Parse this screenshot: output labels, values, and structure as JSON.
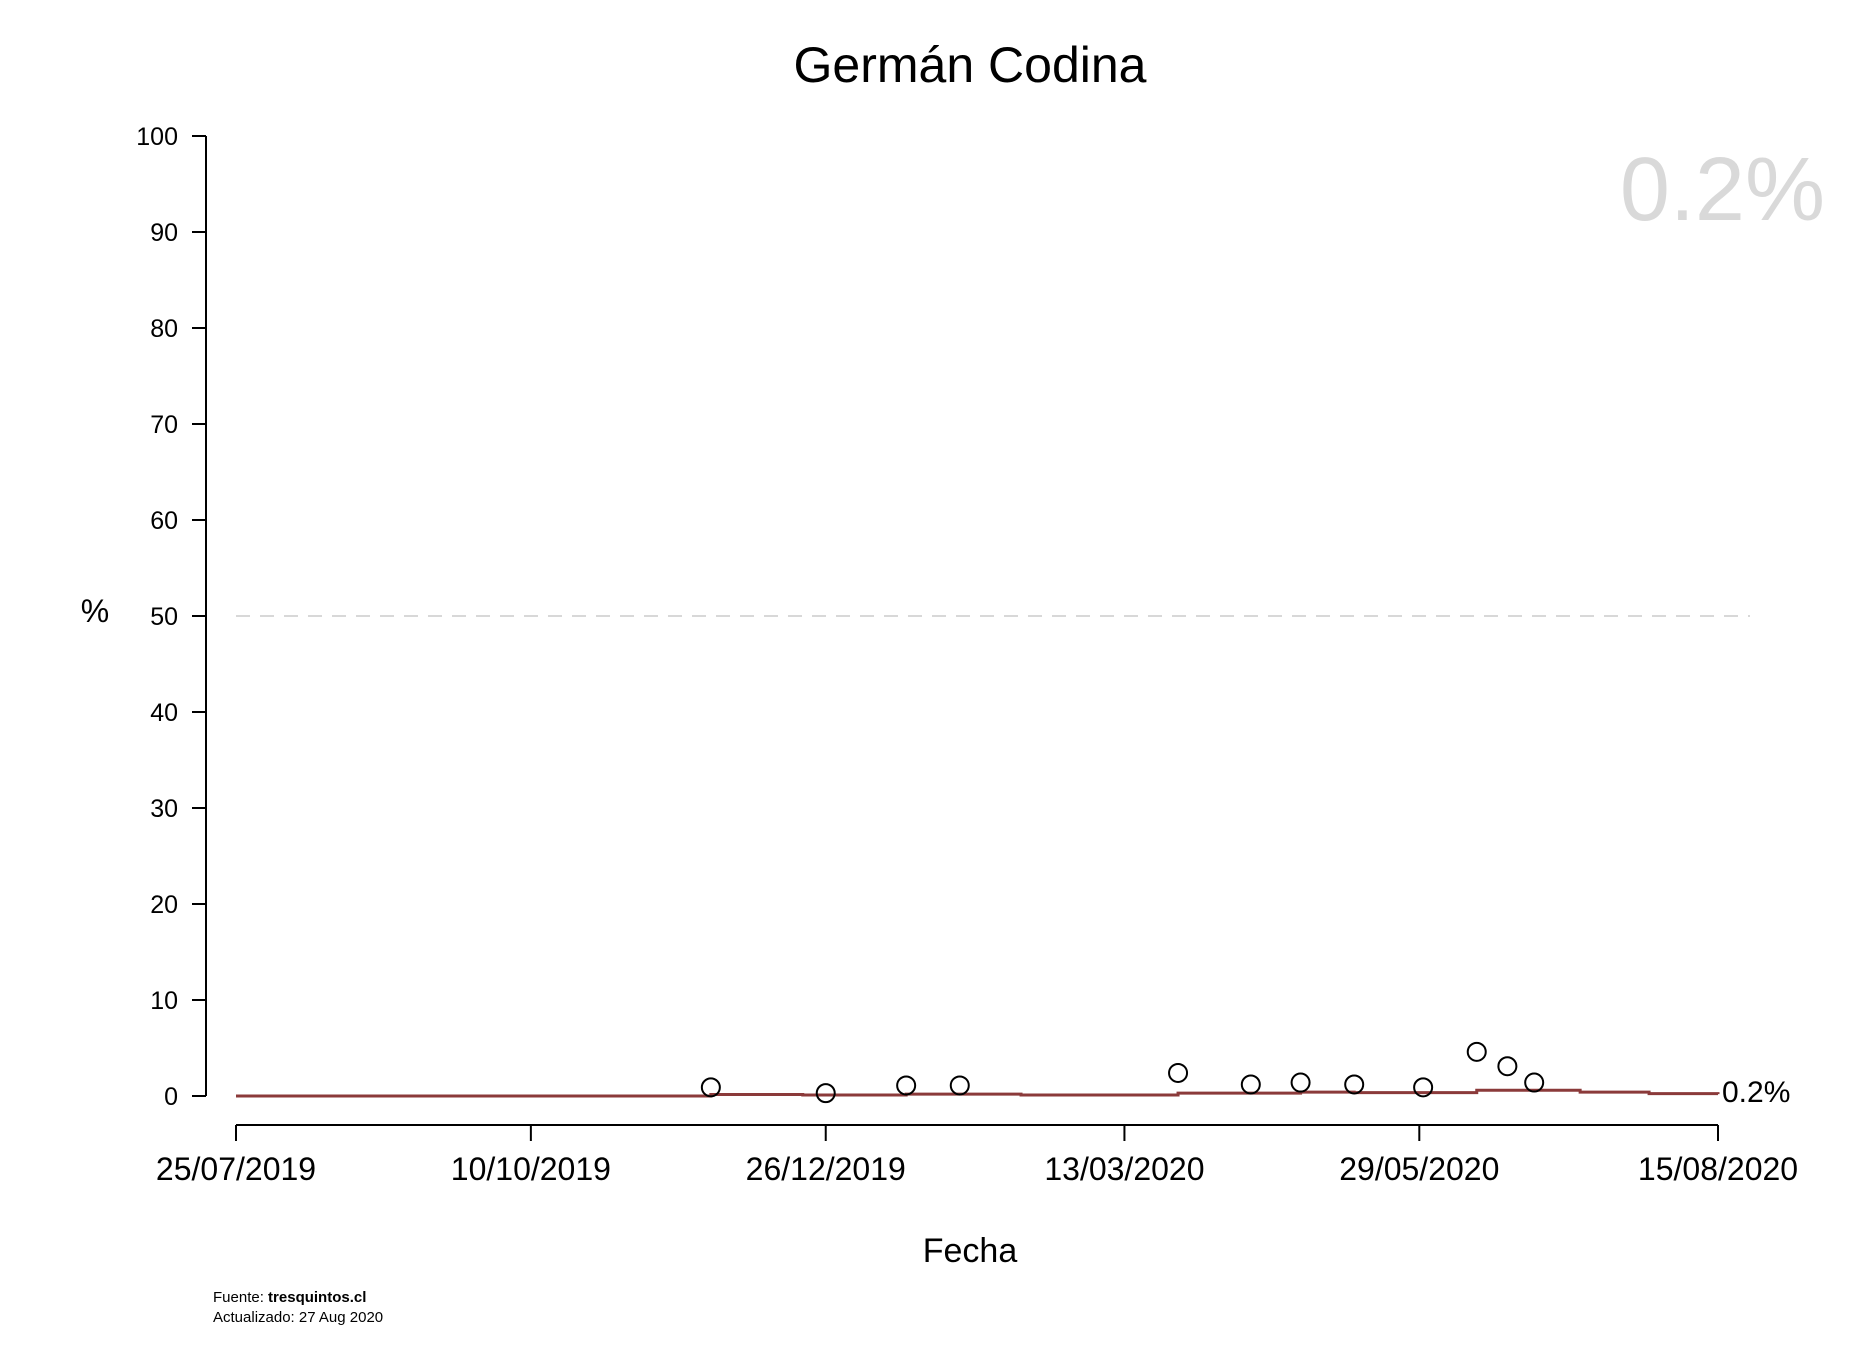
{
  "chart_data": {
    "type": "line",
    "title": "Germán Codina",
    "xlabel": "Fecha",
    "ylabel": "%",
    "ylim": [
      0,
      100
    ],
    "yticks": [
      0,
      10,
      20,
      30,
      40,
      50,
      60,
      70,
      80,
      90,
      100
    ],
    "xlim": [
      "2019-07-25",
      "2020-08-15"
    ],
    "xticks": [
      {
        "date": "2019-07-25",
        "label": "25/07/2019"
      },
      {
        "date": "2019-10-10",
        "label": "10/10/2019"
      },
      {
        "date": "2019-12-26",
        "label": "26/12/2019"
      },
      {
        "date": "2020-03-13",
        "label": "13/03/2020"
      },
      {
        "date": "2020-05-29",
        "label": "29/05/2020"
      },
      {
        "date": "2020-08-15",
        "label": "15/08/2020"
      }
    ],
    "reference_line": {
      "y": 50,
      "style": "dashed",
      "color": "#cccccc"
    },
    "points": [
      {
        "date": "2019-11-26",
        "y": 0.9
      },
      {
        "date": "2019-12-26",
        "y": 0.3
      },
      {
        "date": "2020-01-16",
        "y": 1.1
      },
      {
        "date": "2020-01-30",
        "y": 1.1
      },
      {
        "date": "2020-03-27",
        "y": 2.4
      },
      {
        "date": "2020-04-15",
        "y": 1.2
      },
      {
        "date": "2020-04-28",
        "y": 1.4
      },
      {
        "date": "2020-05-12",
        "y": 1.2
      },
      {
        "date": "2020-05-30",
        "y": 0.9
      },
      {
        "date": "2020-06-13",
        "y": 4.6
      },
      {
        "date": "2020-06-21",
        "y": 3.1
      },
      {
        "date": "2020-06-28",
        "y": 1.4
      }
    ],
    "trend": {
      "color": "#8b3a3a",
      "steps": [
        {
          "date": "2019-07-25",
          "y": 0.0
        },
        {
          "date": "2019-11-26",
          "y": 0.15
        },
        {
          "date": "2019-12-20",
          "y": 0.1
        },
        {
          "date": "2020-01-16",
          "y": 0.2
        },
        {
          "date": "2020-02-15",
          "y": 0.1
        },
        {
          "date": "2020-03-27",
          "y": 0.3
        },
        {
          "date": "2020-04-28",
          "y": 0.4
        },
        {
          "date": "2020-05-12",
          "y": 0.35
        },
        {
          "date": "2020-06-13",
          "y": 0.6
        },
        {
          "date": "2020-07-10",
          "y": 0.4
        },
        {
          "date": "2020-07-28",
          "y": 0.25
        },
        {
          "date": "2020-08-15",
          "y": 0.2
        }
      ]
    },
    "current_value_label": "0.2%",
    "watermark_label": "0.2%",
    "colors": {
      "points": "#000000",
      "axis": "#000000",
      "watermark": "#d9d9d9",
      "trend": "#8b3a3a"
    }
  },
  "footer": {
    "source_prefix": "Fuente: ",
    "source_name": "tresquintos.cl",
    "updated": "Actualizado: 27 Aug 2020"
  }
}
